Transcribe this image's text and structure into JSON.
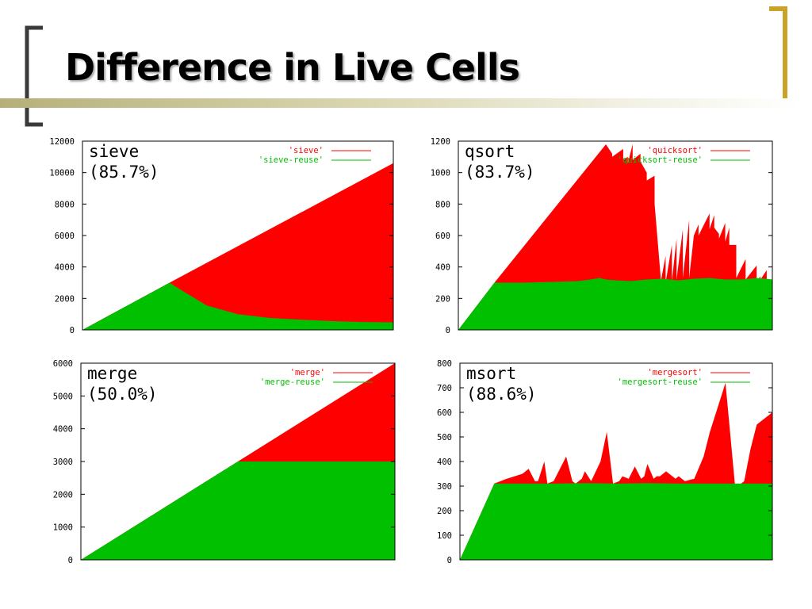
{
  "slide": {
    "title": "Difference in Live Cells"
  },
  "colors": {
    "accent": "#c9a227",
    "red_series": "#ff0000",
    "green_series": "#00c000",
    "title_bar": "#b5b07a"
  },
  "chart_data": [
    {
      "type": "area",
      "title": "sieve",
      "subtitle": "(85.7%)",
      "ylim": [
        0,
        12000
      ],
      "yticks": [
        "0",
        "2000",
        "4000",
        "6000",
        "8000",
        "10000",
        "12000"
      ],
      "series": [
        {
          "name": "'sieve'",
          "color": "#ff0000",
          "x": [
            0,
            0.28,
            1
          ],
          "values": [
            0,
            3000,
            10600
          ]
        },
        {
          "name": "'sieve-reuse'",
          "color": "#00c000",
          "x": [
            0,
            0.28,
            0.32,
            0.4,
            0.5,
            0.6,
            0.7,
            0.8,
            0.9,
            1
          ],
          "values": [
            0,
            3000,
            2500,
            1550,
            1000,
            760,
            650,
            560,
            500,
            480
          ]
        }
      ]
    },
    {
      "type": "area",
      "title": "qsort",
      "subtitle": "(83.7%)",
      "ylim": [
        0,
        1200
      ],
      "yticks": [
        "0",
        "200",
        "400",
        "600",
        "800",
        "1000",
        "1200"
      ],
      "series": [
        {
          "name": "'quicksort'",
          "color": "#ff0000",
          "x": [
            0,
            0.115,
            0.47,
            0.49,
            0.49,
            0.525,
            0.525,
            0.54,
            0.54,
            0.555,
            0.555,
            0.58,
            0.58,
            0.6,
            0.6,
            0.625,
            0.625,
            0.645,
            0.645,
            0.66,
            0.66,
            0.68,
            0.68,
            0.695,
            0.695,
            0.715,
            0.715,
            0.735,
            0.735,
            0.75,
            0.75,
            0.765,
            0.765,
            0.8,
            0.8,
            0.815,
            0.815,
            0.83,
            0.83,
            0.85,
            0.85,
            0.863,
            0.863,
            0.885,
            0.885,
            0.915,
            0.915,
            0.95,
            0.95,
            0.962,
            0.962,
            0.982,
            0.982,
            1
          ],
          "values": [
            0,
            300,
            1180,
            1120,
            1100,
            1150,
            1080,
            1100,
            1060,
            1180,
            1080,
            1120,
            1070,
            1000,
            950,
            980,
            800,
            320,
            310,
            470,
            300,
            540,
            310,
            580,
            320,
            640,
            330,
            700,
            330,
            600,
            600,
            670,
            600,
            740,
            640,
            730,
            650,
            610,
            580,
            680,
            560,
            650,
            540,
            540,
            330,
            450,
            320,
            410,
            310,
            340,
            320,
            380,
            320,
            320
          ]
        },
        {
          "name": "'quicksort-reuse'",
          "color": "#00c000",
          "x": [
            0,
            0.115,
            0.2,
            0.3,
            0.38,
            0.4,
            0.42,
            0.45,
            0.47,
            0.5,
            0.55,
            0.6,
            0.65,
            0.7,
            0.75,
            0.8,
            0.85,
            0.9,
            0.95,
            0.98,
            1
          ],
          "values": [
            0,
            300,
            300,
            305,
            310,
            315,
            320,
            330,
            320,
            315,
            310,
            320,
            325,
            315,
            325,
            330,
            320,
            320,
            330,
            325,
            320
          ]
        }
      ]
    },
    {
      "type": "area",
      "title": "merge",
      "subtitle": "(50.0%)",
      "ylim": [
        0,
        6000
      ],
      "yticks": [
        "0",
        "1000",
        "2000",
        "3000",
        "4000",
        "5000",
        "6000"
      ],
      "series": [
        {
          "name": "'merge'",
          "color": "#ff0000",
          "x": [
            0,
            0.5,
            1
          ],
          "values": [
            0,
            3000,
            6000
          ]
        },
        {
          "name": "'merge-reuse'",
          "color": "#00c000",
          "x": [
            0,
            0.5,
            1
          ],
          "values": [
            0,
            3000,
            3000
          ]
        }
      ]
    },
    {
      "type": "area",
      "title": "msort",
      "subtitle": "(88.6%)",
      "ylim": [
        0,
        800
      ],
      "yticks": [
        "0",
        "100",
        "200",
        "300",
        "400",
        "500",
        "600",
        "700",
        "800"
      ],
      "series": [
        {
          "name": "'mergesort'",
          "color": "#ff0000",
          "x": [
            0,
            0.11,
            0.15,
            0.2,
            0.22,
            0.24,
            0.25,
            0.27,
            0.28,
            0.3,
            0.34,
            0.36,
            0.37,
            0.39,
            0.4,
            0.42,
            0.45,
            0.47,
            0.49,
            0.51,
            0.52,
            0.54,
            0.56,
            0.58,
            0.59,
            0.6,
            0.62,
            0.63,
            0.64,
            0.66,
            0.69,
            0.7,
            0.72,
            0.75,
            0.78,
            0.8,
            0.82,
            0.85,
            0.88,
            0.9,
            0.91,
            0.93,
            0.95,
            1
          ],
          "values": [
            0,
            310,
            330,
            350,
            370,
            320,
            320,
            400,
            310,
            320,
            420,
            320,
            310,
            330,
            360,
            320,
            400,
            520,
            310,
            320,
            340,
            330,
            380,
            330,
            340,
            390,
            330,
            340,
            340,
            360,
            330,
            340,
            320,
            330,
            420,
            520,
            600,
            720,
            310,
            310,
            320,
            450,
            550,
            600
          ]
        },
        {
          "name": "'mergesort-reuse'",
          "color": "#00c000",
          "x": [
            0,
            0.11,
            0.2,
            0.3,
            0.4,
            0.5,
            0.6,
            0.7,
            0.8,
            0.9,
            1
          ],
          "values": [
            0,
            310,
            310,
            310,
            312,
            310,
            312,
            310,
            310,
            310,
            310
          ]
        }
      ]
    }
  ]
}
